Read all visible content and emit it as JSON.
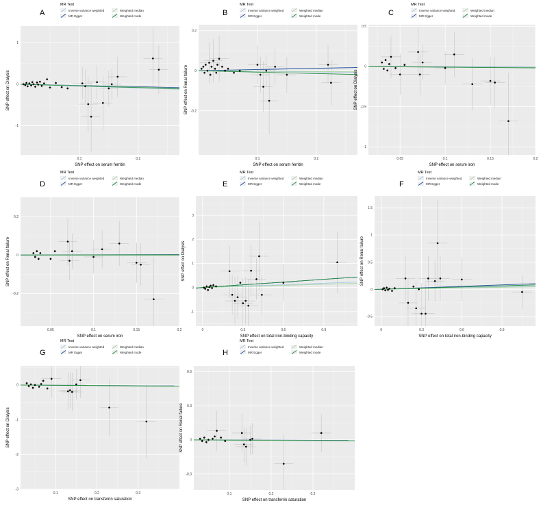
{
  "legend": {
    "title": "MR Test",
    "entries": [
      {
        "label": "Inverse variance weighted",
        "color": "#a6c8e0"
      },
      {
        "label": "MR Egger",
        "color": "#1f4e9c"
      },
      {
        "label": "Weighted median",
        "color": "#a8d5a2"
      },
      {
        "label": "Weighted mode",
        "color": "#1e8a3c"
      }
    ]
  },
  "colors": {
    "panel_bg": "#ebebeb",
    "grid": "#ffffff",
    "point": "#000000",
    "errorbar": "#bdbdbd"
  },
  "chart_data": [
    {
      "panel": "A",
      "type": "scatter",
      "xlabel": "SNP effect on serum ferritin",
      "ylabel": "SNP effect on Dialysis",
      "xlim": [
        0,
        0.27
      ],
      "ylim": [
        -1.7,
        1.4
      ],
      "xticks": [
        0.1,
        0.2
      ],
      "yticks": [
        -1,
        0,
        1
      ],
      "points": [
        {
          "x": 0.005,
          "y": 0.0
        },
        {
          "x": 0.008,
          "y": -0.02
        },
        {
          "x": 0.01,
          "y": 0.03
        },
        {
          "x": 0.012,
          "y": -0.05
        },
        {
          "x": 0.015,
          "y": 0.02
        },
        {
          "x": 0.018,
          "y": -0.03
        },
        {
          "x": 0.02,
          "y": 0.05
        },
        {
          "x": 0.022,
          "y": 0.0
        },
        {
          "x": 0.025,
          "y": -0.06
        },
        {
          "x": 0.028,
          "y": 0.04
        },
        {
          "x": 0.03,
          "y": -0.01
        },
        {
          "x": 0.033,
          "y": 0.06
        },
        {
          "x": 0.036,
          "y": -0.04
        },
        {
          "x": 0.04,
          "y": 0.02
        },
        {
          "x": 0.045,
          "y": 0.12
        },
        {
          "x": 0.05,
          "y": -0.08
        },
        {
          "x": 0.06,
          "y": 0.03
        },
        {
          "x": 0.07,
          "y": -0.07
        },
        {
          "x": 0.08,
          "y": -0.1
        },
        {
          "x": 0.105,
          "y": 0.02
        },
        {
          "x": 0.11,
          "y": -0.05
        },
        {
          "x": 0.115,
          "y": -0.48
        },
        {
          "x": 0.12,
          "y": -0.78
        },
        {
          "x": 0.13,
          "y": 0.05
        },
        {
          "x": 0.14,
          "y": -0.45
        },
        {
          "x": 0.15,
          "y": -0.1
        },
        {
          "x": 0.155,
          "y": 0.0
        },
        {
          "x": 0.165,
          "y": 0.18
        },
        {
          "x": 0.225,
          "y": 0.62
        },
        {
          "x": 0.235,
          "y": 0.35
        }
      ],
      "lines": [
        {
          "series": "Inverse variance weighted",
          "slope": -0.45
        },
        {
          "series": "MR Egger",
          "slope": -0.3
        },
        {
          "series": "Weighted median",
          "slope": -0.35
        },
        {
          "series": "Weighted mode",
          "slope": -0.4
        }
      ]
    },
    {
      "panel": "B",
      "type": "scatter",
      "xlabel": "SNP effect on serum ferritin",
      "ylabel": "SNP effect on Renal failure",
      "xlim": [
        0,
        0.27
      ],
      "ylim": [
        -0.42,
        0.23
      ],
      "xticks": [
        0.1,
        0.2
      ],
      "yticks": [
        -0.2,
        0,
        0.2
      ],
      "points": [
        {
          "x": 0.005,
          "y": 0.01
        },
        {
          "x": 0.008,
          "y": 0.02
        },
        {
          "x": 0.01,
          "y": -0.01
        },
        {
          "x": 0.012,
          "y": 0.03
        },
        {
          "x": 0.015,
          "y": 0.0
        },
        {
          "x": 0.018,
          "y": 0.04
        },
        {
          "x": 0.02,
          "y": -0.02
        },
        {
          "x": 0.022,
          "y": 0.02
        },
        {
          "x": 0.025,
          "y": 0.05
        },
        {
          "x": 0.028,
          "y": 0.01
        },
        {
          "x": 0.03,
          "y": -0.01
        },
        {
          "x": 0.032,
          "y": 0.03
        },
        {
          "x": 0.035,
          "y": 0.06
        },
        {
          "x": 0.04,
          "y": 0.02
        },
        {
          "x": 0.045,
          "y": 0.0
        },
        {
          "x": 0.05,
          "y": 0.01
        },
        {
          "x": 0.06,
          "y": -0.01
        },
        {
          "x": 0.07,
          "y": 0.0
        },
        {
          "x": 0.1,
          "y": 0.03
        },
        {
          "x": 0.105,
          "y": -0.02
        },
        {
          "x": 0.11,
          "y": -0.08
        },
        {
          "x": 0.115,
          "y": 0.0
        },
        {
          "x": 0.12,
          "y": -0.15
        },
        {
          "x": 0.13,
          "y": 0.02
        },
        {
          "x": 0.15,
          "y": -0.02
        },
        {
          "x": 0.22,
          "y": 0.03
        },
        {
          "x": 0.225,
          "y": -0.06
        }
      ],
      "lines": [
        {
          "series": "Inverse variance weighted",
          "slope": -0.03
        },
        {
          "series": "MR Egger",
          "slope": 0.06
        },
        {
          "series": "Weighted median",
          "slope": -0.02
        },
        {
          "series": "Weighted mode",
          "slope": -0.07
        }
      ]
    },
    {
      "panel": "C",
      "type": "scatter",
      "xlabel": "SNP effect on serum iron",
      "ylabel": "SNP effect on Dialysis",
      "xlim": [
        0.015,
        0.2
      ],
      "ylim": [
        -1.1,
        0.52
      ],
      "xticks": [
        0.05,
        0.1,
        0.15,
        0.2
      ],
      "yticks": [
        -1.0,
        -0.5,
        0.0,
        0.5
      ],
      "points": [
        {
          "x": 0.03,
          "y": 0.05
        },
        {
          "x": 0.032,
          "y": -0.03
        },
        {
          "x": 0.034,
          "y": 0.08
        },
        {
          "x": 0.036,
          "y": -0.05
        },
        {
          "x": 0.038,
          "y": 0.03
        },
        {
          "x": 0.04,
          "y": 0.12
        },
        {
          "x": 0.045,
          "y": -0.02
        },
        {
          "x": 0.05,
          "y": -0.1
        },
        {
          "x": 0.055,
          "y": 0.02
        },
        {
          "x": 0.07,
          "y": 0.18
        },
        {
          "x": 0.072,
          "y": -0.1
        },
        {
          "x": 0.075,
          "y": 0.05
        },
        {
          "x": 0.1,
          "y": -0.02
        },
        {
          "x": 0.11,
          "y": 0.15
        },
        {
          "x": 0.13,
          "y": -0.22
        },
        {
          "x": 0.15,
          "y": -0.18
        },
        {
          "x": 0.155,
          "y": -0.2
        },
        {
          "x": 0.17,
          "y": -0.68
        }
      ],
      "lines": [
        {
          "series": "Inverse variance weighted",
          "slope": -0.08
        },
        {
          "series": "MR Egger",
          "slope": -0.05
        },
        {
          "series": "Weighted median",
          "slope": -0.07
        },
        {
          "series": "Weighted mode",
          "slope": -0.09
        }
      ]
    },
    {
      "panel": "D",
      "type": "scatter",
      "xlabel": "SNP effect on serum iron",
      "ylabel": "SNP effect on Renal failure",
      "xlim": [
        0.015,
        0.2
      ],
      "ylim": [
        -0.37,
        0.3
      ],
      "xticks": [
        0.05,
        0.1,
        0.15,
        0.2
      ],
      "yticks": [
        -0.2,
        0.0,
        0.2
      ],
      "points": [
        {
          "x": 0.03,
          "y": 0.01
        },
        {
          "x": 0.032,
          "y": -0.01
        },
        {
          "x": 0.034,
          "y": 0.02
        },
        {
          "x": 0.036,
          "y": -0.02
        },
        {
          "x": 0.038,
          "y": 0.01
        },
        {
          "x": 0.05,
          "y": -0.02
        },
        {
          "x": 0.055,
          "y": 0.02
        },
        {
          "x": 0.07,
          "y": 0.07
        },
        {
          "x": 0.072,
          "y": -0.03
        },
        {
          "x": 0.075,
          "y": 0.02
        },
        {
          "x": 0.1,
          "y": -0.01
        },
        {
          "x": 0.11,
          "y": 0.03
        },
        {
          "x": 0.13,
          "y": 0.06
        },
        {
          "x": 0.15,
          "y": -0.04
        },
        {
          "x": 0.155,
          "y": -0.05
        },
        {
          "x": 0.17,
          "y": -0.23
        }
      ],
      "lines": [
        {
          "series": "Inverse variance weighted",
          "slope": 0.0
        },
        {
          "series": "MR Egger",
          "slope": 0.01
        },
        {
          "series": "Weighted median",
          "slope": -0.01
        },
        {
          "series": "Weighted mode",
          "slope": 0.005
        }
      ]
    },
    {
      "panel": "E",
      "type": "scatter",
      "xlabel": "SNP effect on total iron-binding capacity",
      "ylabel": "SNP effect on Dialysis",
      "xlim": [
        -0.05,
        1.15
      ],
      "ylim": [
        -1.6,
        3.8
      ],
      "xticks": [
        0.0,
        0.3,
        0.6,
        0.9
      ],
      "yticks": [
        -1,
        0,
        1,
        2,
        3
      ],
      "points": [
        {
          "x": 0.01,
          "y": 0.0
        },
        {
          "x": 0.02,
          "y": -0.05
        },
        {
          "x": 0.03,
          "y": 0.05
        },
        {
          "x": 0.04,
          "y": -0.1
        },
        {
          "x": 0.05,
          "y": 0.02
        },
        {
          "x": 0.06,
          "y": 0.08
        },
        {
          "x": 0.07,
          "y": -0.02
        },
        {
          "x": 0.08,
          "y": 0.1
        },
        {
          "x": 0.1,
          "y": 0.05
        },
        {
          "x": 0.2,
          "y": 0.68
        },
        {
          "x": 0.22,
          "y": -0.3
        },
        {
          "x": 0.24,
          "y": -0.55
        },
        {
          "x": 0.26,
          "y": -0.4
        },
        {
          "x": 0.28,
          "y": 0.2
        },
        {
          "x": 0.3,
          "y": -0.65
        },
        {
          "x": 0.32,
          "y": -0.55
        },
        {
          "x": 0.34,
          "y": -0.75
        },
        {
          "x": 0.36,
          "y": 0.7
        },
        {
          "x": 0.4,
          "y": 0.35
        },
        {
          "x": 0.42,
          "y": 1.3
        },
        {
          "x": 0.44,
          "y": -0.3
        },
        {
          "x": 0.6,
          "y": 0.2
        },
        {
          "x": 1.0,
          "y": 1.05
        }
      ],
      "lines": [
        {
          "series": "Inverse variance weighted",
          "slope": 0.2
        },
        {
          "series": "MR Egger",
          "slope": 0.38
        },
        {
          "series": "Weighted median",
          "slope": 0.15
        },
        {
          "series": "Weighted mode",
          "slope": 0.38
        }
      ]
    },
    {
      "panel": "F",
      "type": "scatter",
      "xlabel": "SNP effect on total iron-binding capacity",
      "ylabel": "SNP effect on Renal failure",
      "xlim": [
        -0.05,
        1.15
      ],
      "ylim": [
        -0.68,
        1.72
      ],
      "xticks": [
        0.0,
        0.3,
        0.6,
        0.9
      ],
      "yticks": [
        -0.5,
        0.0,
        0.5,
        1.0,
        1.5
      ],
      "points": [
        {
          "x": 0.01,
          "y": 0.0
        },
        {
          "x": 0.02,
          "y": 0.02
        },
        {
          "x": 0.03,
          "y": -0.02
        },
        {
          "x": 0.04,
          "y": 0.03
        },
        {
          "x": 0.05,
          "y": -0.01
        },
        {
          "x": 0.06,
          "y": 0.01
        },
        {
          "x": 0.08,
          "y": -0.03
        },
        {
          "x": 0.1,
          "y": 0.02
        },
        {
          "x": 0.18,
          "y": 0.2
        },
        {
          "x": 0.2,
          "y": -0.25
        },
        {
          "x": 0.24,
          "y": 0.05
        },
        {
          "x": 0.26,
          "y": -0.35
        },
        {
          "x": 0.28,
          "y": 0.0
        },
        {
          "x": 0.3,
          "y": -0.45
        },
        {
          "x": 0.33,
          "y": -0.45
        },
        {
          "x": 0.35,
          "y": 0.2
        },
        {
          "x": 0.4,
          "y": 0.15
        },
        {
          "x": 0.42,
          "y": 0.85
        },
        {
          "x": 0.44,
          "y": 0.2
        },
        {
          "x": 0.6,
          "y": 0.18
        },
        {
          "x": 1.05,
          "y": -0.05
        }
      ],
      "lines": [
        {
          "series": "Inverse variance weighted",
          "slope": 0.05
        },
        {
          "series": "MR Egger",
          "slope": 0.09
        },
        {
          "series": "Weighted median",
          "slope": 0.04
        },
        {
          "series": "Weighted mode",
          "slope": 0.07
        }
      ]
    },
    {
      "panel": "G",
      "type": "scatter",
      "xlabel": "SNP effect on transferrin saturation",
      "ylabel": "SNP effect on Dialysis",
      "xlim": [
        0.015,
        0.4
      ],
      "ylim": [
        -3.0,
        0.55
      ],
      "xticks": [
        0.1,
        0.2,
        0.3
      ],
      "yticks": [
        -3,
        -2,
        -1,
        0
      ],
      "points": [
        {
          "x": 0.03,
          "y": 0.05
        },
        {
          "x": 0.035,
          "y": -0.03
        },
        {
          "x": 0.04,
          "y": 0.02
        },
        {
          "x": 0.045,
          "y": -0.08
        },
        {
          "x": 0.05,
          "y": 0.0
        },
        {
          "x": 0.06,
          "y": -0.05
        },
        {
          "x": 0.065,
          "y": 0.03
        },
        {
          "x": 0.07,
          "y": 0.12
        },
        {
          "x": 0.08,
          "y": -0.1
        },
        {
          "x": 0.09,
          "y": 0.18
        },
        {
          "x": 0.13,
          "y": -0.18
        },
        {
          "x": 0.135,
          "y": -0.15
        },
        {
          "x": 0.14,
          "y": -0.2
        },
        {
          "x": 0.15,
          "y": 0.02
        },
        {
          "x": 0.16,
          "y": 0.14
        },
        {
          "x": 0.23,
          "y": -0.65
        },
        {
          "x": 0.32,
          "y": -1.05
        }
      ],
      "lines": [
        {
          "series": "Inverse variance weighted",
          "slope": -0.08
        },
        {
          "series": "MR Egger",
          "slope": -0.06
        },
        {
          "series": "Weighted median",
          "slope": -0.07
        },
        {
          "series": "Weighted mode",
          "slope": -0.09
        }
      ]
    },
    {
      "panel": "H",
      "type": "scatter",
      "xlabel": "SNP effect on transferrin saturation",
      "ylabel": "SNP effect on Renal failure",
      "xlim": [
        0.015,
        0.4
      ],
      "ylim": [
        -0.44,
        0.65
      ],
      "xticks": [
        0.1,
        0.2,
        0.3
      ],
      "yticks": [
        -0.3,
        0.0,
        0.3,
        0.6
      ],
      "points": [
        {
          "x": 0.03,
          "y": 0.01
        },
        {
          "x": 0.035,
          "y": -0.01
        },
        {
          "x": 0.04,
          "y": 0.02
        },
        {
          "x": 0.045,
          "y": -0.02
        },
        {
          "x": 0.05,
          "y": 0.0
        },
        {
          "x": 0.06,
          "y": 0.01
        },
        {
          "x": 0.065,
          "y": 0.03
        },
        {
          "x": 0.07,
          "y": 0.08
        },
        {
          "x": 0.08,
          "y": 0.02
        },
        {
          "x": 0.09,
          "y": -0.01
        },
        {
          "x": 0.13,
          "y": 0.06
        },
        {
          "x": 0.135,
          "y": -0.04
        },
        {
          "x": 0.14,
          "y": -0.06
        },
        {
          "x": 0.15,
          "y": 0.0
        },
        {
          "x": 0.155,
          "y": 0.01
        },
        {
          "x": 0.23,
          "y": -0.21
        },
        {
          "x": 0.32,
          "y": 0.06
        }
      ],
      "lines": [
        {
          "series": "Inverse variance weighted",
          "slope": -0.02
        },
        {
          "series": "MR Egger",
          "slope": -0.01
        },
        {
          "series": "Weighted median",
          "slope": -0.015
        },
        {
          "series": "Weighted mode",
          "slope": -0.02
        }
      ]
    }
  ]
}
